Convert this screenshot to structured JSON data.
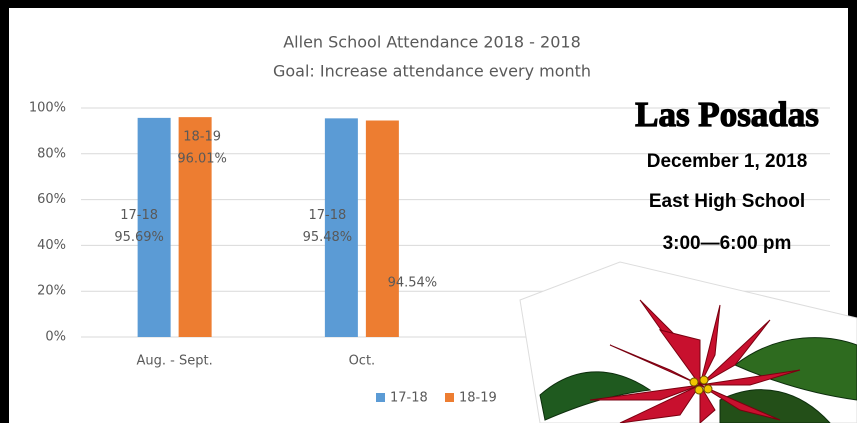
{
  "chart_data": {
    "type": "bar",
    "title": "Allen School Attendance 2018 - 2018",
    "subtitle": "Goal:  Increase attendance every month",
    "categories": [
      "Aug. - Sept.",
      "Oct.",
      null,
      null
    ],
    "series": [
      {
        "name": "17-18",
        "color": "#5b9bd5",
        "values": [
          95.69,
          95.48,
          null,
          null
        ],
        "value_labels": [
          "95.69%",
          "95.48%",
          null,
          null
        ]
      },
      {
        "name": "18-19",
        "color": "#ed7d31",
        "values": [
          96.01,
          94.54,
          null,
          null
        ],
        "value_labels": [
          "96.01%",
          "94.54%",
          null,
          null
        ]
      }
    ],
    "ylim": [
      0,
      100
    ],
    "yticks": [
      {
        "value": 0,
        "label": "0%"
      },
      {
        "value": 20,
        "label": "20%"
      },
      {
        "value": 40,
        "label": "40%"
      },
      {
        "value": 60,
        "label": "60%"
      },
      {
        "value": 80,
        "label": "80%"
      },
      {
        "value": 100,
        "label": "100%"
      }
    ],
    "grid": true,
    "legend": "bottom"
  },
  "flyer": {
    "title": "Las Posadas",
    "date": "December 1, 2018",
    "place": "East High School",
    "time": "3:00—6:00 pm"
  }
}
